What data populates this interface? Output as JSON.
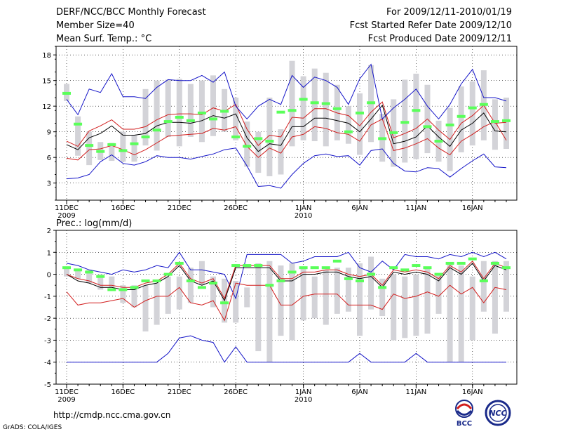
{
  "header": {
    "title": "DERF/NCC/BCC Monthly Forecast",
    "member_size": "Member Size=40",
    "variable": "Mean Surf. Temp.: °C",
    "period": "For 2009/12/11-2010/01/19",
    "started": "Fcst Started Refer Date 2009/12/10",
    "produced": "Fcst Produced Date 2009/12/11"
  },
  "footer": {
    "url": "http://cmdp.ncc.cma.gov.cn",
    "grads": "GrADS: COLA/IGES",
    "logo_bcc": "BCC",
    "logo_ncc": "NCC"
  },
  "colors": {
    "box": "#d3d3d8",
    "mean": "#000000",
    "spread": "#d21e1e",
    "extreme": "#1414c8",
    "clim": "#5aff5a",
    "grid": "#000000"
  },
  "chart_data": [
    {
      "type": "line",
      "title": "Mean Surf. Temp.: °C",
      "xlim": [
        0,
        39
      ],
      "ylim": [
        1,
        19
      ],
      "yticks": [
        3,
        6,
        9,
        12,
        15,
        18
      ],
      "xticks": [
        {
          "i": 0,
          "label": "11DEC",
          "sub": "2009"
        },
        {
          "i": 5,
          "label": "16DEC",
          "sub": ""
        },
        {
          "i": 10,
          "label": "21DEC",
          "sub": ""
        },
        {
          "i": 15,
          "label": "26DEC",
          "sub": ""
        },
        {
          "i": 21,
          "label": "1JAN",
          "sub": "2010"
        },
        {
          "i": 26,
          "label": "6JAN",
          "sub": ""
        },
        {
          "i": 31,
          "label": "11JAN",
          "sub": ""
        },
        {
          "i": 36,
          "label": "16JAN",
          "sub": ""
        }
      ],
      "series": [
        {
          "name": "max",
          "values": [
            3.5,
            3.6,
            4.0,
            5.5,
            6.3,
            5.3,
            5.1,
            5.5,
            6.2,
            6.0,
            6.0,
            5.8,
            6.1,
            6.4,
            6.9,
            7.1,
            5.0,
            2.6,
            2.7,
            2.4,
            4.0,
            5.3,
            6.2,
            6.4,
            6.1,
            6.2,
            5.1,
            6.8,
            7.0,
            5.3,
            4.4,
            4.3,
            4.8,
            4.7,
            3.7,
            4.7,
            5.6,
            6.4,
            4.9,
            4.8
          ]
        },
        {
          "name": "upper",
          "values": [
            5.9,
            5.7,
            6.9,
            7.0,
            7.4,
            6.9,
            6.3,
            6.9,
            7.7,
            8.5,
            8.6,
            8.7,
            8.8,
            9.4,
            9.2,
            9.6,
            7.3,
            6.0,
            7.1,
            6.5,
            8.4,
            8.7,
            9.6,
            9.4,
            8.9,
            8.7,
            7.9,
            9.8,
            10.5,
            6.8,
            7.1,
            7.6,
            8.2,
            7.1,
            6.3,
            7.9,
            8.7,
            9.6,
            10.2,
            8.0
          ]
        },
        {
          "name": "mean",
          "values": [
            7.5,
            6.9,
            8.3,
            8.8,
            9.7,
            8.6,
            8.6,
            8.8,
            9.7,
            10.1,
            10.1,
            10.0,
            10.3,
            10.9,
            10.6,
            11.1,
            8.3,
            6.7,
            7.6,
            7.4,
            9.6,
            9.6,
            10.6,
            10.6,
            10.3,
            10.0,
            9.0,
            10.5,
            12.1,
            7.6,
            7.9,
            8.4,
            9.7,
            8.4,
            7.3,
            9.2,
            10.0,
            11.2,
            9.1,
            9.0
          ]
        },
        {
          "name": "lower",
          "values": [
            7.9,
            7.3,
            9.1,
            9.7,
            10.4,
            9.3,
            9.3,
            9.6,
            10.4,
            11.0,
            11.1,
            11.1,
            11.0,
            11.8,
            11.4,
            12.2,
            9.3,
            7.4,
            8.6,
            8.4,
            10.7,
            10.6,
            11.7,
            11.7,
            11.2,
            10.9,
            9.7,
            11.3,
            12.5,
            8.3,
            8.8,
            9.4,
            10.5,
            9.2,
            8.1,
            10.0,
            10.9,
            12.1,
            10.0,
            10.1
          ]
        },
        {
          "name": "min",
          "values": [
            12.8,
            11.0,
            14.0,
            13.6,
            15.8,
            13.1,
            13.1,
            12.9,
            14.2,
            15.1,
            15.0,
            15.0,
            15.6,
            14.8,
            16.0,
            12.0,
            10.5,
            12.0,
            12.8,
            12.2,
            15.6,
            14.2,
            15.4,
            15.0,
            14.2,
            12.2,
            15.2,
            16.9,
            10.5,
            11.8,
            12.8,
            14.0,
            12.0,
            10.5,
            12.2,
            14.6,
            16.3,
            13.0,
            13.0,
            12.6
          ]
        }
      ],
      "boxes": [
        [
          12.6,
          14.6
        ],
        [
          6.2,
          10.8
        ],
        [
          5.1,
          9.0
        ],
        [
          5.7,
          7.8
        ],
        [
          5.6,
          7.7
        ],
        [
          5.5,
          9.0
        ],
        [
          5.5,
          8.6
        ],
        [
          7.4,
          14.0
        ],
        [
          6.8,
          15.0
        ],
        [
          8.4,
          15.1
        ],
        [
          7.3,
          15.2
        ],
        [
          8.4,
          14.6
        ],
        [
          7.8,
          15.0
        ],
        [
          8.5,
          15.6
        ],
        [
          9.0,
          14.0
        ],
        [
          8.0,
          13.0
        ],
        [
          4.9,
          10.2
        ],
        [
          4.2,
          9.0
        ],
        [
          3.8,
          13.0
        ],
        [
          4.0,
          9.3
        ],
        [
          7.3,
          17.3
        ],
        [
          8.0,
          15.5
        ],
        [
          7.9,
          16.4
        ],
        [
          7.3,
          15.9
        ],
        [
          8.0,
          14.5
        ],
        [
          7.6,
          12.0
        ],
        [
          6.3,
          13.5
        ],
        [
          7.8,
          16.8
        ],
        [
          5.5,
          11.1
        ],
        [
          4.9,
          12.8
        ],
        [
          5.4,
          15.1
        ],
        [
          5.8,
          15.8
        ],
        [
          6.5,
          14.5
        ],
        [
          5.5,
          10.3
        ],
        [
          4.4,
          11.8
        ],
        [
          6.6,
          14.3
        ],
        [
          7.4,
          14.9
        ],
        [
          8.0,
          16.2
        ],
        [
          6.9,
          12.8
        ],
        [
          7.0,
          13.0
        ]
      ],
      "clim": [
        13.5,
        9.9,
        7.4,
        6.7,
        7.5,
        6.8,
        7.6,
        8.4,
        9.2,
        10.2,
        10.7,
        10.3,
        11.2,
        10.5,
        11.4,
        8.4,
        7.3,
        8.2,
        7.9,
        11.3,
        11.5,
        12.8,
        12.4,
        12.3,
        11.7,
        9.0,
        11.2,
        12.4,
        8.2,
        8.9,
        10.1,
        11.5,
        9.6,
        7.9,
        9.8,
        10.8,
        11.8,
        12.2,
        10.2,
        10.3
      ]
    },
    {
      "type": "line",
      "title": "Prec.: log(mm/d)",
      "xlim": [
        0,
        39
      ],
      "ylim": [
        -5,
        2
      ],
      "yticks": [
        -5,
        -4,
        -3,
        -2,
        -1,
        0,
        1,
        2
      ],
      "xticks": [
        {
          "i": 0,
          "label": "11DEC",
          "sub": "2009"
        },
        {
          "i": 5,
          "label": "16DEC",
          "sub": ""
        },
        {
          "i": 10,
          "label": "21DEC",
          "sub": ""
        },
        {
          "i": 15,
          "label": "26DEC",
          "sub": ""
        },
        {
          "i": 21,
          "label": "1JAN",
          "sub": "2010"
        },
        {
          "i": 26,
          "label": "6JAN",
          "sub": ""
        },
        {
          "i": 31,
          "label": "11JAN",
          "sub": ""
        },
        {
          "i": 36,
          "label": "16JAN",
          "sub": ""
        }
      ],
      "series": [
        {
          "name": "max",
          "values": [
            0.5,
            0.4,
            0.2,
            0.1,
            0.0,
            0.2,
            0.1,
            0.2,
            0.4,
            0.3,
            1.0,
            0.2,
            0.2,
            0.1,
            0.0,
            -1.1,
            0.9,
            0.9,
            0.9,
            0.9,
            0.5,
            0.6,
            0.8,
            0.8,
            0.8,
            1.0,
            0.3,
            0.1,
            0.6,
            0.2,
            0.9,
            0.8,
            0.8,
            0.7,
            0.9,
            0.8,
            1.0,
            0.8,
            1.0,
            0.7
          ]
        },
        {
          "name": "mean",
          "values": [
            0.0,
            -0.3,
            -0.4,
            -0.6,
            -0.6,
            -0.7,
            -0.7,
            -0.5,
            -0.4,
            -0.1,
            0.4,
            -0.3,
            -0.5,
            -0.3,
            -1.2,
            0.3,
            0.3,
            0.3,
            0.3,
            -0.3,
            -0.3,
            0.0,
            0.0,
            0.1,
            0.1,
            -0.1,
            -0.2,
            -0.1,
            -0.6,
            0.1,
            0.0,
            0.1,
            0.0,
            -0.3,
            0.3,
            0.0,
            0.5,
            -0.3,
            0.4,
            0.2
          ]
        },
        {
          "name": "upper",
          "values": [
            0.0,
            -0.2,
            -0.3,
            -0.5,
            -0.5,
            -0.6,
            -0.6,
            -0.4,
            -0.3,
            0.0,
            0.5,
            -0.2,
            -0.4,
            -0.2,
            -1.1,
            0.4,
            0.4,
            0.4,
            0.4,
            -0.2,
            -0.2,
            0.1,
            0.1,
            0.2,
            0.2,
            0.0,
            -0.1,
            0.0,
            -0.5,
            0.2,
            0.1,
            0.2,
            0.1,
            -0.2,
            0.4,
            0.1,
            0.6,
            -0.2,
            0.5,
            0.3
          ]
        },
        {
          "name": "lower",
          "values": [
            -0.8,
            -1.4,
            -1.3,
            -1.3,
            -1.2,
            -1.1,
            -1.5,
            -1.2,
            -1.0,
            -1.0,
            -0.6,
            -1.3,
            -1.4,
            -1.2,
            -2.1,
            -0.4,
            -0.5,
            -0.5,
            -0.5,
            -1.4,
            -1.4,
            -1.0,
            -0.9,
            -0.9,
            -0.9,
            -1.4,
            -1.4,
            -1.4,
            -1.6,
            -0.9,
            -1.1,
            -1.0,
            -0.8,
            -1.0,
            -0.5,
            -0.9,
            -0.6,
            -1.3,
            -0.6,
            -0.7
          ]
        },
        {
          "name": "min",
          "values": [
            -4.0,
            -4.0,
            -4.0,
            -4.0,
            -4.0,
            -4.0,
            -4.0,
            -4.0,
            -4.0,
            -3.6,
            -2.9,
            -2.8,
            -3.0,
            -3.1,
            -4.0,
            -3.3,
            -4.0,
            -4.0,
            -4.0,
            -4.0,
            -4.0,
            -4.0,
            -4.0,
            -4.0,
            -4.0,
            -4.0,
            -3.6,
            -4.0,
            -4.0,
            -4.0,
            -4.0,
            -3.6,
            -4.0,
            -4.0,
            -4.0,
            -4.0,
            -4.0,
            -4.0,
            -4.0,
            -4.0
          ]
        }
      ],
      "boxes": [
        [
          -0.1,
          0.3
        ],
        [
          -0.2,
          0.2
        ],
        [
          -0.4,
          0.2
        ],
        [
          -0.7,
          0.0
        ],
        [
          -0.6,
          -0.1
        ],
        [
          -1.3,
          -0.5
        ],
        [
          -1.5,
          -0.5
        ],
        [
          -2.6,
          -0.5
        ],
        [
          -2.3,
          -0.4
        ],
        [
          -1.8,
          -0.1
        ],
        [
          -1.6,
          -0.1
        ],
        [
          -1.3,
          0.3
        ],
        [
          -0.5,
          0.6
        ],
        [
          -1.5,
          -0.1
        ],
        [
          -2.2,
          -0.2
        ],
        [
          -2.2,
          -0.3
        ],
        [
          -1.5,
          -0.6
        ],
        [
          -3.5,
          0.5
        ],
        [
          -4.0,
          0.6
        ],
        [
          -2.8,
          0.4
        ],
        [
          -3.0,
          0.5
        ],
        [
          -2.1,
          0.3
        ],
        [
          -2.0,
          -0.1
        ],
        [
          -2.3,
          0.2
        ],
        [
          -1.8,
          0.3
        ],
        [
          -1.7,
          0.3
        ],
        [
          -2.8,
          0.5
        ],
        [
          -1.6,
          0.8
        ],
        [
          -1.9,
          -0.2
        ],
        [
          -3.0,
          0.0
        ],
        [
          -2.9,
          -0.1
        ],
        [
          -2.8,
          0.0
        ],
        [
          -2.7,
          0.3
        ],
        [
          -1.8,
          0.0
        ],
        [
          -4.0,
          0.5
        ],
        [
          -4.0,
          0.4
        ],
        [
          -3.0,
          -0.1
        ],
        [
          -1.7,
          0.6
        ],
        [
          -2.7,
          0.6
        ],
        [
          -1.7,
          0.6
        ]
      ],
      "clim": [
        0.3,
        0.2,
        0.1,
        -0.1,
        -0.7,
        -0.7,
        -0.6,
        -0.3,
        -0.3,
        0.0,
        0.5,
        -0.3,
        -0.6,
        -0.4,
        -1.3,
        0.4,
        0.4,
        0.4,
        -0.5,
        -0.3,
        0.1,
        0.3,
        0.3,
        0.3,
        0.6,
        -0.2,
        -0.3,
        0.0,
        -0.6,
        0.3,
        0.2,
        0.4,
        0.3,
        0.0,
        0.5,
        0.5,
        0.7,
        -0.3,
        0.5,
        0.3
      ]
    }
  ]
}
